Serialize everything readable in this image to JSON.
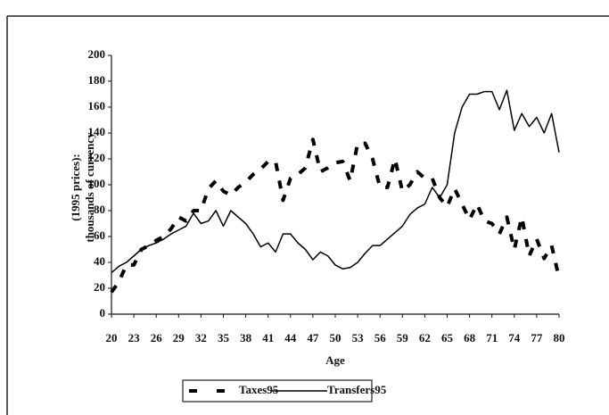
{
  "chart_data": {
    "type": "line",
    "xlabel": "Age",
    "ylabel": [
      "(1995 prices):",
      "thousands of currency"
    ],
    "x": [
      20,
      21,
      22,
      23,
      24,
      25,
      26,
      27,
      28,
      29,
      30,
      31,
      32,
      33,
      34,
      35,
      36,
      37,
      38,
      39,
      40,
      41,
      42,
      43,
      44,
      45,
      46,
      47,
      48,
      49,
      50,
      51,
      52,
      53,
      54,
      55,
      56,
      57,
      58,
      59,
      60,
      61,
      62,
      63,
      64,
      65,
      66,
      67,
      68,
      69,
      70,
      71,
      72,
      73,
      74,
      75,
      76,
      77,
      78,
      79,
      80
    ],
    "series": [
      {
        "name": "Taxes95",
        "color": "#000000",
        "dashed": true,
        "values": [
          17,
          25,
          38,
          38,
          50,
          53,
          57,
          60,
          66,
          75,
          72,
          80,
          80,
          97,
          103,
          95,
          92,
          98,
          102,
          108,
          112,
          118,
          118,
          88,
          105,
          108,
          113,
          135,
          110,
          113,
          117,
          118,
          103,
          132,
          132,
          120,
          98,
          98,
          120,
          95,
          100,
          110,
          105,
          105,
          90,
          83,
          97,
          85,
          73,
          85,
          72,
          70,
          62,
          75,
          50,
          75,
          45,
          58,
          43,
          53,
          28
        ]
      },
      {
        "name": "Transfers95",
        "color": "#000000",
        "dashed": false,
        "values": [
          32,
          37,
          40,
          45,
          50,
          53,
          55,
          58,
          62,
          65,
          68,
          78,
          70,
          72,
          80,
          68,
          80,
          75,
          70,
          62,
          52,
          55,
          48,
          62,
          62,
          55,
          50,
          42,
          48,
          45,
          38,
          35,
          36,
          40,
          47,
          53,
          53,
          58,
          63,
          68,
          77,
          82,
          85,
          98,
          90,
          100,
          140,
          160,
          170,
          170,
          172,
          172,
          158,
          173,
          142,
          155,
          145,
          152,
          140,
          155,
          125
        ]
      }
    ],
    "xlim": [
      20,
      80
    ],
    "xticks": [
      20,
      23,
      26,
      29,
      32,
      35,
      38,
      41,
      44,
      47,
      50,
      53,
      56,
      59,
      62,
      65,
      68,
      71,
      74,
      77,
      80
    ],
    "ylim": [
      0,
      200
    ],
    "yticks": [
      0,
      20,
      40,
      60,
      80,
      100,
      120,
      140,
      160,
      180,
      200
    ],
    "legend": "bottom"
  }
}
